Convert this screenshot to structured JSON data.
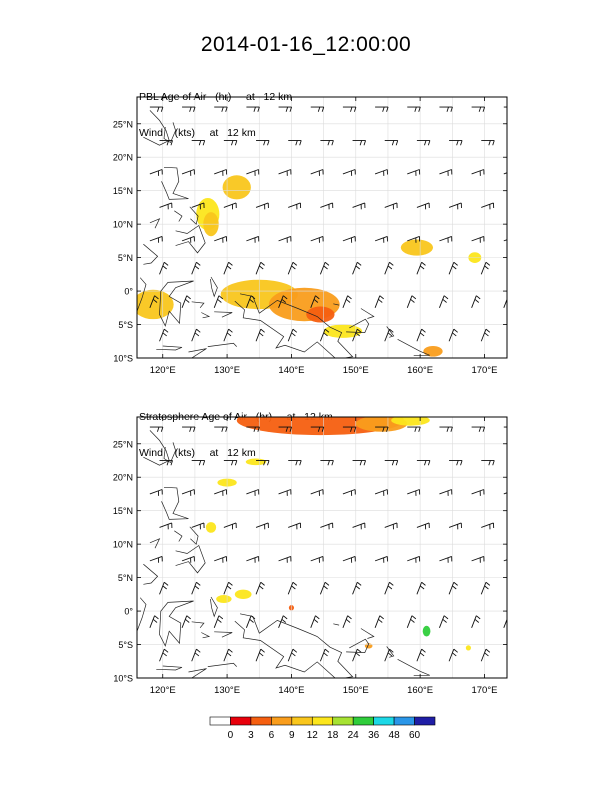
{
  "title": "2014-01-16_12:00:00",
  "chart_data": [
    {
      "type": "heatmap",
      "title_line1": "PBL Age of Air   (hr)     at   12 km",
      "title_line2": "Wind    (kts)     at   12 km",
      "variable": "PBL Age of Air (hr)",
      "overlay": "Wind barbs (kts) at 12 km",
      "xlim": [
        116,
        173.5
      ],
      "ylim": [
        -10,
        29
      ],
      "x_ticks": [
        120,
        130,
        140,
        150,
        160,
        170
      ],
      "x_tick_labels": [
        "120°E",
        "130°E",
        "140°E",
        "150°E",
        "160°E",
        "170°E"
      ],
      "y_ticks": [
        -10,
        -5,
        0,
        5,
        10,
        15,
        20,
        25
      ],
      "y_tick_labels": [
        "10°S",
        "5°S",
        "0°",
        "5°N",
        "10°N",
        "15°N",
        "20°N",
        "25°N"
      ],
      "grid": true,
      "wind": {
        "start_lon": 118,
        "dlon": 5,
        "start_lat": 27.5,
        "dlat": -5,
        "cols": 12,
        "rows": 8,
        "direction_from": "east-northeast",
        "speed_kts": 20
      },
      "blobs": [
        {
          "lon": 131.5,
          "lat": 15.5,
          "rlon": 2.2,
          "rlat": 1.8,
          "level": 9
        },
        {
          "lon": 127.0,
          "lat": 11.5,
          "rlon": 1.8,
          "rlat": 2.4,
          "level": 12
        },
        {
          "lon": 127.5,
          "lat": 10.0,
          "rlon": 1.2,
          "rlat": 1.8,
          "level": 9
        },
        {
          "lon": 159.5,
          "lat": 6.5,
          "rlon": 2.5,
          "rlat": 1.2,
          "level": 9
        },
        {
          "lon": 168.5,
          "lat": 5.0,
          "rlon": 1.0,
          "rlat": 0.8,
          "level": 12
        },
        {
          "lon": 118.5,
          "lat": -2.0,
          "rlon": 3.2,
          "rlat": 2.2,
          "level": 9
        },
        {
          "lon": 135.0,
          "lat": -0.5,
          "rlon": 6.0,
          "rlat": 2.2,
          "level": 9
        },
        {
          "lon": 142.0,
          "lat": -2.0,
          "rlon": 5.5,
          "rlat": 2.5,
          "level": 6
        },
        {
          "lon": 144.5,
          "lat": -3.5,
          "rlon": 2.2,
          "rlat": 1.2,
          "level": 3
        },
        {
          "lon": 148.0,
          "lat": -6.0,
          "rlon": 3.0,
          "rlat": 1.0,
          "level": 12
        },
        {
          "lon": 162.0,
          "lat": -9.0,
          "rlon": 1.5,
          "rlat": 0.8,
          "level": 6
        }
      ]
    },
    {
      "type": "heatmap",
      "title_line1": "Stratosphere Age of Air   (hr)     at   12 km",
      "title_line2": "Wind    (kts)     at   12 km",
      "variable": "Stratosphere Age of Air (hr)",
      "overlay": "Wind barbs (kts) at 12 km",
      "xlim": [
        116,
        173.5
      ],
      "ylim": [
        -10,
        29
      ],
      "x_ticks": [
        120,
        130,
        140,
        150,
        160,
        170
      ],
      "x_tick_labels": [
        "120°E",
        "130°E",
        "140°E",
        "150°E",
        "160°E",
        "170°E"
      ],
      "y_ticks": [
        -10,
        -5,
        0,
        5,
        10,
        15,
        20,
        25
      ],
      "y_tick_labels": [
        "10°S",
        "5°S",
        "0°",
        "5°N",
        "10°N",
        "15°N",
        "20°N",
        "25°N"
      ],
      "grid": true,
      "wind": {
        "start_lon": 118,
        "dlon": 5,
        "start_lat": 27.5,
        "dlat": -5,
        "cols": 12,
        "rows": 8,
        "direction_from": "east-northeast",
        "speed_kts": 20
      },
      "blobs": [
        {
          "lon": 144.5,
          "lat": 28.5,
          "rlon": 13.0,
          "rlat": 2.2,
          "level": 3
        },
        {
          "lon": 154.0,
          "lat": 28.0,
          "rlon": 4.0,
          "rlat": 1.2,
          "level": 6
        },
        {
          "lon": 158.5,
          "lat": 28.5,
          "rlon": 3.0,
          "rlat": 0.8,
          "level": 12
        },
        {
          "lon": 134.5,
          "lat": 22.3,
          "rlon": 1.6,
          "rlat": 0.5,
          "level": 12
        },
        {
          "lon": 130.0,
          "lat": 19.2,
          "rlon": 1.5,
          "rlat": 0.6,
          "level": 12
        },
        {
          "lon": 127.5,
          "lat": 12.5,
          "rlon": 0.8,
          "rlat": 0.8,
          "level": 12
        },
        {
          "lon": 129.5,
          "lat": 1.8,
          "rlon": 1.2,
          "rlat": 0.6,
          "level": 12
        },
        {
          "lon": 132.5,
          "lat": 2.5,
          "rlon": 1.3,
          "rlat": 0.7,
          "level": 12
        },
        {
          "lon": 140.0,
          "lat": 0.5,
          "rlon": 0.4,
          "rlat": 0.4,
          "level": 3
        },
        {
          "lon": 161.0,
          "lat": -3.0,
          "rlon": 0.6,
          "rlat": 0.8,
          "level": 24
        },
        {
          "lon": 152.0,
          "lat": -5.2,
          "rlon": 0.6,
          "rlat": 0.4,
          "level": 6
        },
        {
          "lon": 167.5,
          "lat": -5.5,
          "rlon": 0.4,
          "rlat": 0.4,
          "level": 12
        }
      ]
    }
  ],
  "colorbar": {
    "levels": [
      "0",
      "3",
      "6",
      "9",
      "12",
      "18",
      "24",
      "36",
      "48",
      "60"
    ],
    "colors": [
      "#ffffff",
      "#e8000b",
      "#f55f10",
      "#f99d1c",
      "#f9c61c",
      "#fce61c",
      "#a6e232",
      "#2fcd3b",
      "#1cd8e6",
      "#2a96e8",
      "#1f1ea6"
    ]
  }
}
